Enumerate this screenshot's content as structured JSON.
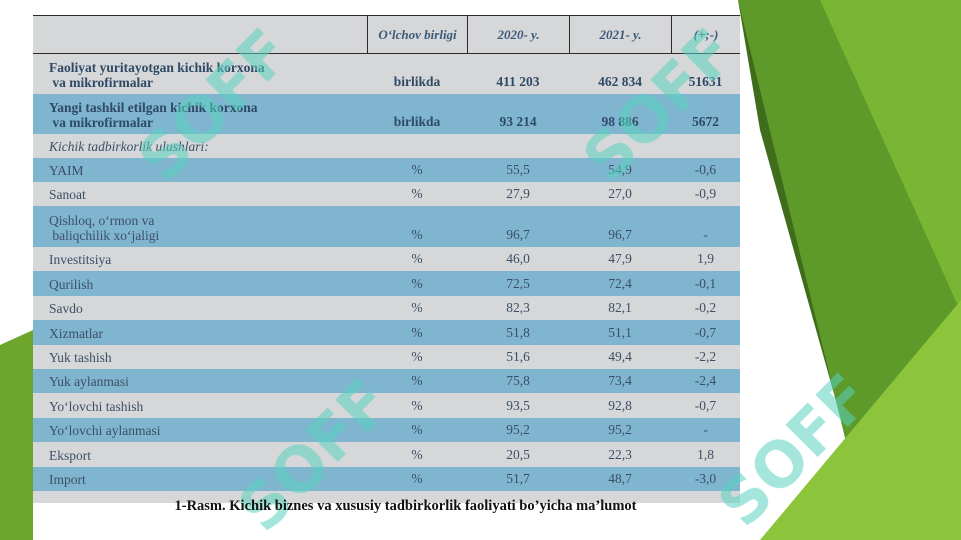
{
  "colors": {
    "green_dark": "#3f6d1b",
    "green_mid": "#5e9a2a",
    "green_light": "#8cc43c",
    "table_bg": "#d6d7d8",
    "row_blue": "#7fb5cf",
    "watermark": "#5ad1c0"
  },
  "watermark_text": "SOFF",
  "table": {
    "headers": [
      "",
      "O‘lchov birligi",
      "2020- y.",
      "2021- y.",
      "(+;-)"
    ],
    "rows": [
      {
        "name": "Faoliyat yuritayotgan kichik korxona\n va mikrofirmalar",
        "unit": "birlikda",
        "v2020": "411 203",
        "v2021": "462 834",
        "diff": "51631"
      },
      {
        "name": "Yangi tashkil etilgan kichik korxona\n va mikrofirmalar",
        "unit": "birlikda",
        "v2020": "93 214",
        "v2021": "98 886",
        "diff": "5672"
      },
      {
        "name": "Kichik tadbirkorlik ulushlari:",
        "unit": "",
        "v2020": "",
        "v2021": "",
        "diff": ""
      },
      {
        "name": "YAIM",
        "unit": "%",
        "v2020": "55,5",
        "v2021": "54,9",
        "diff": "-0,6"
      },
      {
        "name": "Sanoat",
        "unit": "%",
        "v2020": "27,9",
        "v2021": "27,0",
        "diff": "-0,9"
      },
      {
        "name": "Qishloq, o‘rmon va\n baliqchilik xo‘jaligi",
        "unit": "%",
        "v2020": "96,7",
        "v2021": "96,7",
        "diff": "-"
      },
      {
        "name": "Investitsiya",
        "unit": "%",
        "v2020": "46,0",
        "v2021": "47,9",
        "diff": "1,9"
      },
      {
        "name": "Qurilish",
        "unit": "%",
        "v2020": "72,5",
        "v2021": "72,4",
        "diff": "-0,1"
      },
      {
        "name": "Savdo",
        "unit": "%",
        "v2020": "82,3",
        "v2021": "82,1",
        "diff": "-0,2"
      },
      {
        "name": "Xizmatlar",
        "unit": "%",
        "v2020": "51,8",
        "v2021": "51,1",
        "diff": "-0,7"
      },
      {
        "name": "Yuk tashish",
        "unit": "%",
        "v2020": "51,6",
        "v2021": "49,4",
        "diff": "-2,2"
      },
      {
        "name": "Yuk aylanmasi",
        "unit": "%",
        "v2020": "75,8",
        "v2021": "73,4",
        "diff": "-2,4"
      },
      {
        "name": "Yo‘lovchi tashish",
        "unit": "%",
        "v2020": "93,5",
        "v2021": "92,8",
        "diff": "-0,7"
      },
      {
        "name": "Yo‘lovchi aylanmasi",
        "unit": "%",
        "v2020": "95,2",
        "v2021": "95,2",
        "diff": "-"
      },
      {
        "name": "Eksport",
        "unit": "%",
        "v2020": "20,5",
        "v2021": "22,3",
        "diff": "1,8"
      },
      {
        "name": "Import",
        "unit": "%",
        "v2020": "51,7",
        "v2021": "48,7",
        "diff": "-3,0"
      }
    ]
  },
  "caption": "1-Rasm. Kichik biznes va xususiy tadbirkorlik faoliyati bo’yicha ma’lumot"
}
